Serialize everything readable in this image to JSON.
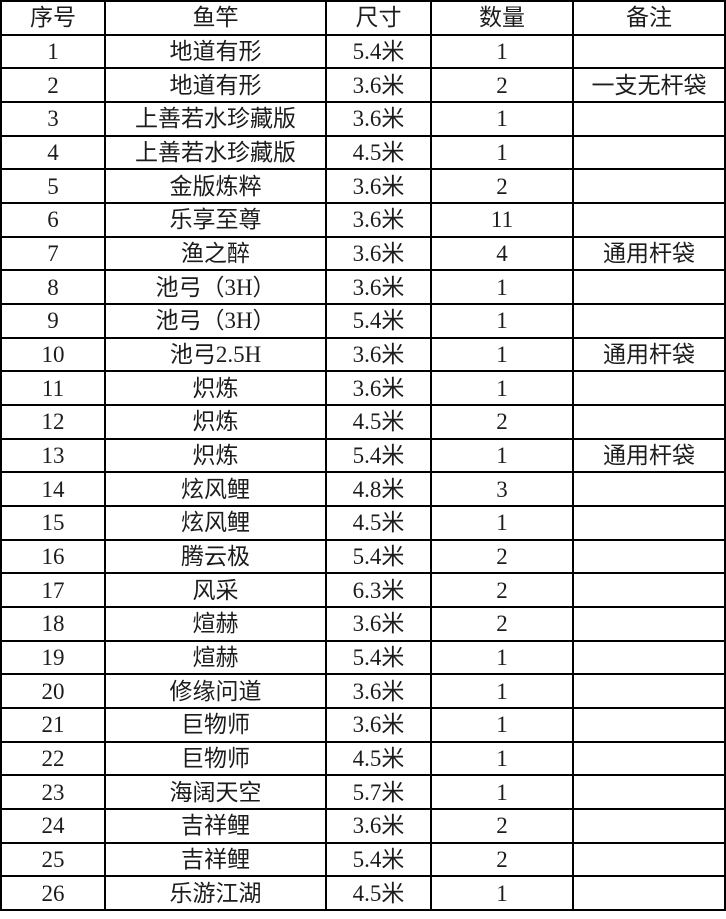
{
  "table": {
    "headers": [
      "序号",
      "鱼竿",
      "尺寸",
      "数量",
      "备注"
    ],
    "rows": [
      [
        "1",
        "地道有形",
        "5.4米",
        "1",
        ""
      ],
      [
        "2",
        "地道有形",
        "3.6米",
        "2",
        "一支无杆袋"
      ],
      [
        "3",
        "上善若水珍藏版",
        "3.6米",
        "1",
        ""
      ],
      [
        "4",
        "上善若水珍藏版",
        "4.5米",
        "1",
        ""
      ],
      [
        "5",
        "金版炼粹",
        "3.6米",
        "2",
        ""
      ],
      [
        "6",
        "乐享至尊",
        "3.6米",
        "11",
        ""
      ],
      [
        "7",
        "渔之醉",
        "3.6米",
        "4",
        "通用杆袋"
      ],
      [
        "8",
        "池弓（3H）",
        "3.6米",
        "1",
        ""
      ],
      [
        "9",
        "池弓（3H）",
        "5.4米",
        "1",
        ""
      ],
      [
        "10",
        "池弓2.5H",
        "3.6米",
        "1",
        "通用杆袋"
      ],
      [
        "11",
        "炽炼",
        "3.6米",
        "1",
        ""
      ],
      [
        "12",
        "炽炼",
        "4.5米",
        "2",
        ""
      ],
      [
        "13",
        "炽炼",
        "5.4米",
        "1",
        "通用杆袋"
      ],
      [
        "14",
        "炫风鲤",
        "4.8米",
        "3",
        ""
      ],
      [
        "15",
        "炫风鲤",
        "4.5米",
        "1",
        ""
      ],
      [
        "16",
        "腾云极",
        "5.4米",
        "2",
        ""
      ],
      [
        "17",
        "风采",
        "6.3米",
        "2",
        ""
      ],
      [
        "18",
        "煊赫",
        "3.6米",
        "2",
        ""
      ],
      [
        "19",
        "煊赫",
        "5.4米",
        "1",
        ""
      ],
      [
        "20",
        "修缘问道",
        "3.6米",
        "1",
        ""
      ],
      [
        "21",
        "巨物师",
        "3.6米",
        "1",
        ""
      ],
      [
        "22",
        "巨物师",
        "4.5米",
        "1",
        ""
      ],
      [
        "23",
        "海阔天空",
        "5.7米",
        "1",
        ""
      ],
      [
        "24",
        "吉祥鲤",
        "3.6米",
        "2",
        ""
      ],
      [
        "25",
        "吉祥鲤",
        "5.4米",
        "2",
        ""
      ],
      [
        "26",
        "乐游江湖",
        "4.5米",
        "1",
        ""
      ]
    ],
    "colors": {
      "border": "#000000",
      "cell_background": "#ffffff",
      "text": "#1c1c1c"
    }
  }
}
